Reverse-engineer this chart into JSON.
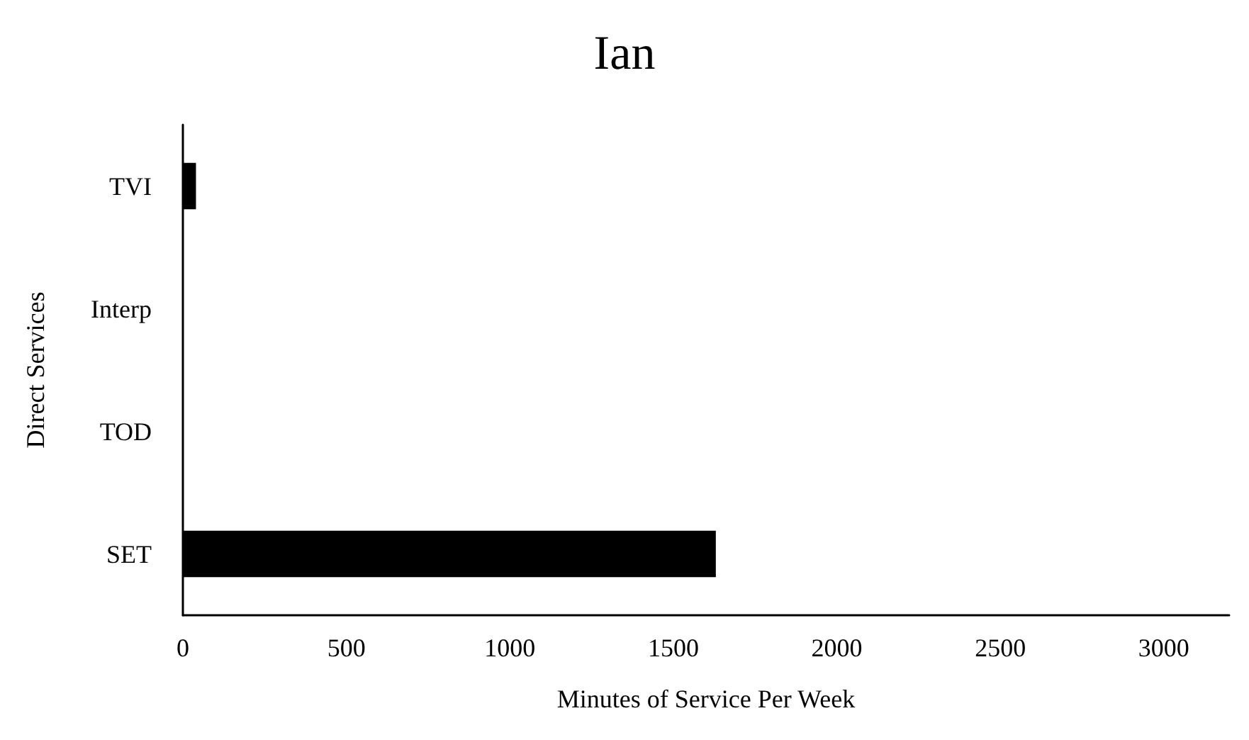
{
  "chart_data": {
    "type": "bar",
    "orientation": "horizontal",
    "title": "Ian",
    "xlabel": "Minutes of Service Per Week",
    "ylabel": "Direct Services",
    "categories": [
      "TVI",
      "Interp",
      "TOD",
      "SET"
    ],
    "values": [
      40,
      0,
      0,
      1630
    ],
    "color": "#000000",
    "xlim": [
      0,
      3200
    ],
    "xticks": [
      0,
      500,
      1000,
      1500,
      2000,
      2500,
      3000
    ],
    "grid": false
  }
}
